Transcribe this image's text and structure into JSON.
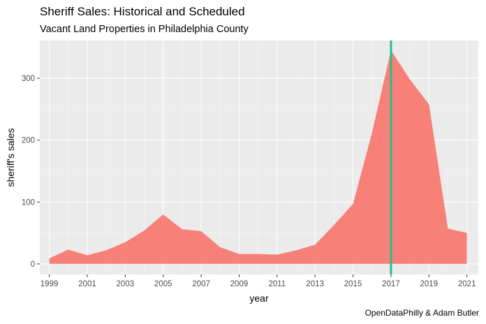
{
  "chart_data": {
    "type": "area",
    "title": "Sheriff Sales: Historical and Scheduled",
    "subtitle": "Vacant Land Properties in Philadelphia County",
    "caption": "OpenDataPhilly & Adam Butler",
    "xlabel": "year",
    "ylabel": "sheriff's sales",
    "x": [
      1999,
      2000,
      2001,
      2002,
      2003,
      2004,
      2005,
      2006,
      2007,
      2008,
      2009,
      2010,
      2011,
      2012,
      2013,
      2014,
      2015,
      2016,
      2017,
      2018,
      2019,
      2020,
      2021
    ],
    "values": [
      9,
      23,
      14,
      22,
      35,
      54,
      80,
      56,
      53,
      27,
      16,
      16,
      15,
      22,
      31,
      63,
      97,
      212,
      345,
      298,
      258,
      57,
      50
    ],
    "x_ticks": [
      "1999",
      "2001",
      "2003",
      "2005",
      "2007",
      "2009",
      "2011",
      "2013",
      "2015",
      "2017",
      "2019",
      "2021"
    ],
    "y_ticks": [
      "0",
      "100",
      "200",
      "300"
    ],
    "xlim": [
      1998.5,
      2021.6
    ],
    "ylim": [
      -17,
      361
    ],
    "vline_x": 2017,
    "fill_color": "#f8766d",
    "vline_color": "#21c08b",
    "panel_color": "#ebebeb",
    "grid": true,
    "legend": "none"
  }
}
